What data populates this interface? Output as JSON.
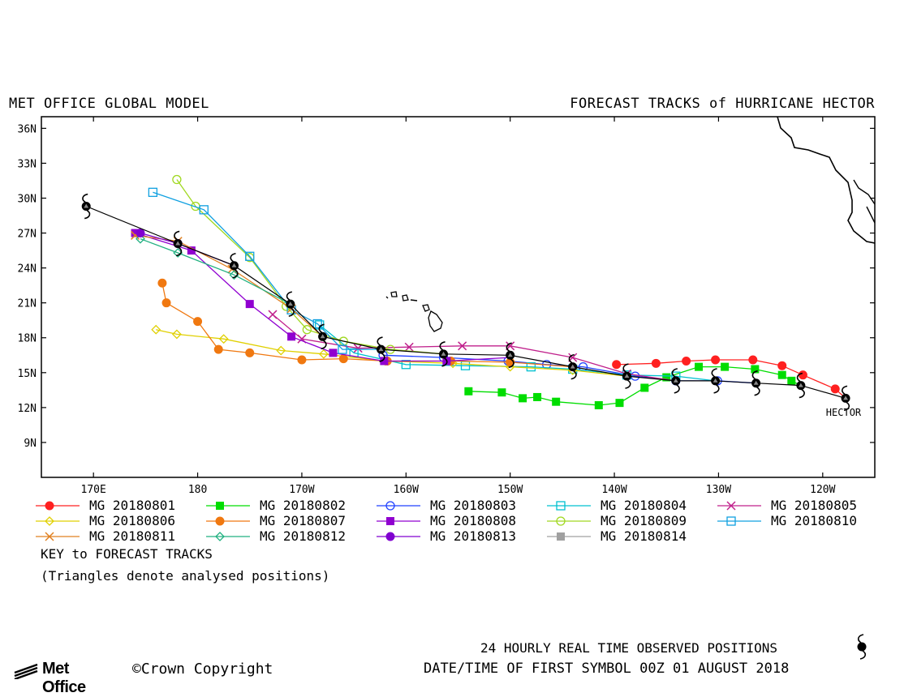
{
  "header": {
    "left_title": "MET OFFICE GLOBAL MODEL",
    "right_title": "FORECAST TRACKS of HURRICANE HECTOR"
  },
  "map": {
    "lon_range_east": [
      165,
      245
    ],
    "lat_range": [
      6,
      37
    ],
    "lat_ticks": [
      {
        "lat": 36,
        "label": "36N"
      },
      {
        "lat": 33,
        "label": "33N"
      },
      {
        "lat": 30,
        "label": "30N"
      },
      {
        "lat": 27,
        "label": "27N"
      },
      {
        "lat": 24,
        "label": "24N"
      },
      {
        "lat": 21,
        "label": "21N"
      },
      {
        "lat": 18,
        "label": "18N"
      },
      {
        "lat": 15,
        "label": "15N"
      },
      {
        "lat": 12,
        "label": "12N"
      },
      {
        "lat": 9,
        "label": "9N"
      }
    ],
    "lon_ticks": [
      {
        "lon": 170,
        "label": "170E"
      },
      {
        "lon": 180,
        "label": "180"
      },
      {
        "lon": 190,
        "label": "170W"
      },
      {
        "lon": 200,
        "label": "160W"
      },
      {
        "lon": 210,
        "label": "150W"
      },
      {
        "lon": 220,
        "label": "140W"
      },
      {
        "lon": 230,
        "label": "130W"
      },
      {
        "lon": 240,
        "label": "120W"
      }
    ],
    "storm_label": "HECTOR",
    "storm_label_pos": [
      242,
      12
    ]
  },
  "observed_track": [
    [
      242.2,
      12.8
    ],
    [
      237.9,
      13.9
    ],
    [
      233.6,
      14.1
    ],
    [
      229.7,
      14.3
    ],
    [
      225.9,
      14.3
    ],
    [
      221.2,
      14.7
    ],
    [
      216.0,
      15.5
    ],
    [
      210.0,
      16.5
    ],
    [
      203.6,
      16.6
    ],
    [
      197.6,
      17.0
    ],
    [
      192.0,
      18.1
    ],
    [
      188.9,
      20.9
    ],
    [
      183.5,
      24.2
    ],
    [
      178.1,
      26.1
    ],
    [
      169.3,
      29.3
    ]
  ],
  "forecasts": [
    {
      "name": "MG 20180801",
      "color": "#ff2020",
      "marker": "circle",
      "points": [
        [
          242.2,
          12.8
        ],
        [
          241.2,
          13.6
        ],
        [
          238.1,
          14.8
        ],
        [
          236.1,
          15.6
        ],
        [
          233.3,
          16.1
        ],
        [
          229.7,
          16.1
        ],
        [
          226.9,
          16.0
        ],
        [
          224.0,
          15.8
        ],
        [
          220.2,
          15.7
        ]
      ]
    },
    {
      "name": "MG 20180802",
      "color": "#00dd00",
      "marker": "square",
      "points": [
        [
          237.9,
          13.9
        ],
        [
          237.0,
          14.3
        ],
        [
          236.1,
          14.8
        ],
        [
          233.5,
          15.3
        ],
        [
          230.6,
          15.5
        ],
        [
          228.1,
          15.5
        ],
        [
          225.0,
          14.6
        ],
        [
          222.9,
          13.7
        ],
        [
          220.5,
          12.4
        ],
        [
          218.5,
          12.2
        ],
        [
          214.4,
          12.5
        ],
        [
          212.6,
          12.9
        ],
        [
          211.2,
          12.8
        ],
        [
          209.2,
          13.3
        ],
        [
          206.0,
          13.4
        ]
      ]
    },
    {
      "name": "MG 20180803",
      "color": "#2040ff",
      "marker": "circle-open",
      "points": [
        [
          233.6,
          14.1
        ],
        [
          229.9,
          14.3
        ],
        [
          225.9,
          14.3
        ],
        [
          222.0,
          14.7
        ],
        [
          217.0,
          15.5
        ],
        [
          213.5,
          15.7
        ],
        [
          209.8,
          16.0
        ],
        [
          203.6,
          16.3
        ],
        [
          197.8,
          16.5
        ]
      ]
    },
    {
      "name": "MG 20180804",
      "color": "#00c0d0",
      "marker": "square-open",
      "points": [
        [
          229.7,
          14.3
        ],
        [
          225.9,
          14.7
        ],
        [
          221.2,
          14.8
        ],
        [
          216.0,
          15.3
        ],
        [
          212.0,
          15.5
        ],
        [
          205.7,
          15.6
        ],
        [
          200.0,
          15.7
        ],
        [
          195.0,
          16.7
        ],
        [
          191.7,
          19.1
        ]
      ]
    },
    {
      "name": "MG 20180805",
      "color": "#c0208c",
      "marker": "x",
      "points": [
        [
          225.9,
          14.3
        ],
        [
          221.2,
          14.9
        ],
        [
          216.0,
          16.3
        ],
        [
          210.0,
          17.3
        ],
        [
          205.4,
          17.3
        ],
        [
          200.3,
          17.2
        ],
        [
          195.4,
          17.1
        ],
        [
          190.0,
          17.9
        ],
        [
          187.2,
          20.0
        ]
      ]
    },
    {
      "name": "MG 20180806",
      "color": "#e0d000",
      "marker": "diamond-open",
      "points": [
        [
          221.2,
          14.7
        ],
        [
          216.0,
          15.2
        ],
        [
          210.0,
          15.5
        ],
        [
          204.5,
          15.8
        ],
        [
          198.0,
          16.0
        ],
        [
          192.1,
          16.6
        ],
        [
          188.0,
          16.9
        ],
        [
          182.5,
          17.9
        ],
        [
          178.0,
          18.3
        ],
        [
          176.0,
          18.7
        ]
      ]
    },
    {
      "name": "MG 20180807",
      "color": "#f07810",
      "marker": "circle",
      "points": [
        [
          216.0,
          15.5
        ],
        [
          210.0,
          15.9
        ],
        [
          204.3,
          16.0
        ],
        [
          198.2,
          16.0
        ],
        [
          194.0,
          16.2
        ],
        [
          190.0,
          16.1
        ],
        [
          185.0,
          16.7
        ],
        [
          182.0,
          17.0
        ],
        [
          180.0,
          19.4
        ],
        [
          177.0,
          21.0
        ],
        [
          176.6,
          22.7
        ]
      ]
    },
    {
      "name": "MG 20180808",
      "color": "#9000d0",
      "marker": "square",
      "points": [
        [
          210.0,
          16.3
        ],
        [
          203.9,
          16.0
        ],
        [
          197.9,
          16.0
        ],
        [
          193.0,
          16.7
        ],
        [
          189.0,
          18.1
        ],
        [
          185.0,
          20.9
        ],
        [
          179.4,
          25.5
        ],
        [
          174.0,
          27.0
        ]
      ]
    },
    {
      "name": "MG 20180809",
      "color": "#a0d820",
      "marker": "circle-open",
      "points": [
        [
          203.6,
          16.6
        ],
        [
          198.5,
          17.0
        ],
        [
          194.0,
          17.7
        ],
        [
          190.5,
          18.7
        ],
        [
          188.5,
          20.7
        ],
        [
          185.0,
          24.9
        ],
        [
          179.8,
          29.3
        ],
        [
          178.0,
          31.6
        ]
      ]
    },
    {
      "name": "MG 20180810",
      "color": "#10a0e0",
      "marker": "square-open",
      "points": [
        [
          197.6,
          17.0
        ],
        [
          193.9,
          17.0
        ],
        [
          191.5,
          19.2
        ],
        [
          189.0,
          20.4
        ],
        [
          185.0,
          25.0
        ],
        [
          180.6,
          29.0
        ],
        [
          175.7,
          30.5
        ]
      ]
    },
    {
      "name": "MG 20180811",
      "color": "#e08020",
      "marker": "x",
      "points": [
        [
          192.0,
          18.1
        ],
        [
          189.0,
          20.5
        ],
        [
          183.3,
          23.9
        ],
        [
          178.1,
          26.3
        ],
        [
          174.0,
          26.8
        ]
      ]
    },
    {
      "name": "MG 20180812",
      "color": "#20b080",
      "marker": "diamond-open",
      "points": [
        [
          188.9,
          20.9
        ],
        [
          183.5,
          23.4
        ],
        [
          178.1,
          25.3
        ],
        [
          174.5,
          26.5
        ]
      ]
    },
    {
      "name": "MG 20180813",
      "color": "#8000d0",
      "marker": "circle",
      "points": [
        [
          183.5,
          24.2
        ],
        [
          178.1,
          26.1
        ],
        [
          174.5,
          27.0
        ]
      ]
    },
    {
      "name": "MG 20180814",
      "color": "#a0a0a0",
      "marker": "square",
      "points": []
    }
  ],
  "legend": {
    "key_title": "KEY to FORECAST TRACKS",
    "note": "(Triangles denote analysed positions)"
  },
  "footer": {
    "observed_label": "24 HOURLY REAL TIME OBSERVED POSITIONS",
    "datetime_label": "DATE/TIME OF FIRST SYMBOL 00Z 01 AUGUST 2018",
    "logo_text": "Met Office",
    "copyright": "©Crown Copyright"
  }
}
